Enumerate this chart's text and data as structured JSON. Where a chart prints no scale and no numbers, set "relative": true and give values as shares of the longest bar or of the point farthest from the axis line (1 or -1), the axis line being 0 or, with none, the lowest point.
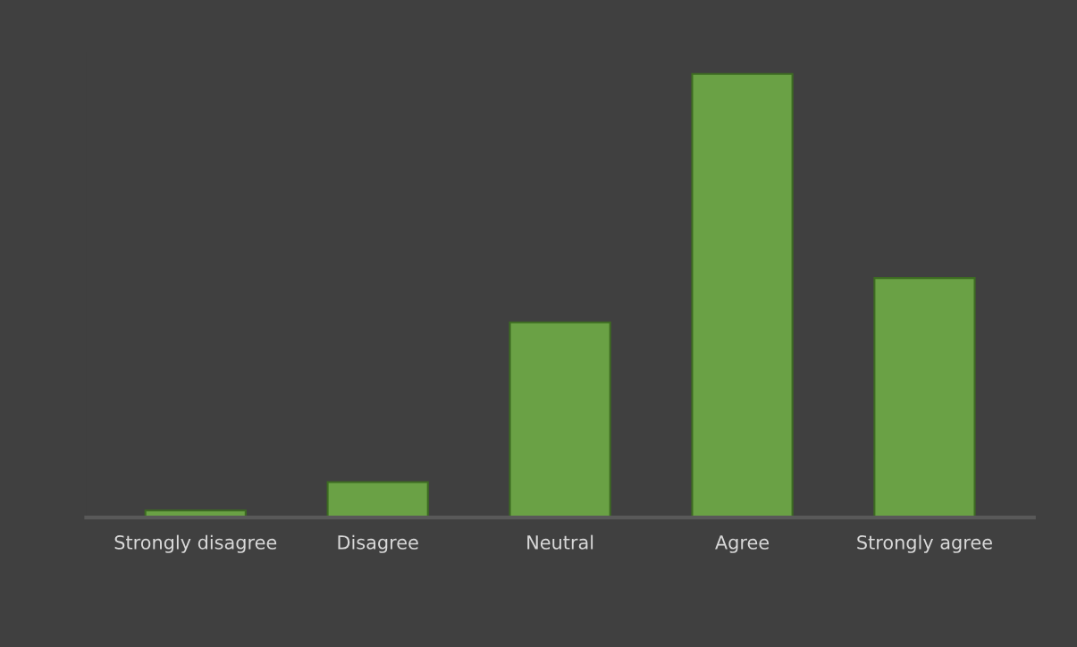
{
  "chart_data": {
    "type": "bar",
    "relative": true,
    "categories": [
      "Strongly disagree",
      "Disagree",
      "Neutral",
      "Agree",
      "Strongly agree"
    ],
    "values": [
      0.016,
      0.08,
      0.44,
      1,
      0.54
    ],
    "color": "#6aa145"
  }
}
